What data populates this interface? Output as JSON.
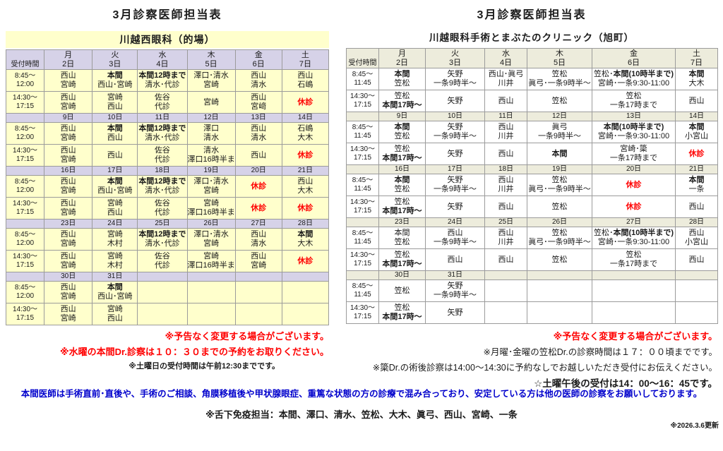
{
  "page_title": "3月診察医師担当表",
  "colors": {
    "holiday_red": "#FF0000",
    "notice_blue": "#0000CC",
    "left_header_bg": "#D6D2E8",
    "left_body_bg": "#FFFFCC",
    "right_header_bg": "#EDECDC"
  },
  "tables": {
    "left": {
      "clinic": "川越西眼科（的場）",
      "corner": "受付時間",
      "days": [
        "月",
        "火",
        "水",
        "木",
        "金",
        "土"
      ],
      "am_label": "8:45～\n12:00",
      "pm_label": "14:30～\n17:15",
      "weeks": [
        {
          "dates": [
            "2日",
            "3日",
            "4日",
            "5日",
            "6日",
            "7日"
          ],
          "am": [
            [
              "西山",
              "宮崎"
            ],
            [
              {
                "t": "本間",
                "b": 1
              },
              "西山･宮崎"
            ],
            [
              {
                "t": "本間12時まで",
                "b": 1
              },
              "清水･代診"
            ],
            [
              "澤口･清水",
              "宮崎"
            ],
            [
              "西山",
              "清水"
            ],
            [
              "西山",
              "石嶋"
            ]
          ],
          "pm": [
            [
              "西山",
              "宮崎"
            ],
            [
              "宮崎",
              "西山"
            ],
            [
              "佐谷",
              "代診"
            ],
            [
              "宮崎"
            ],
            [
              "西山",
              "宮﨑"
            ],
            [
              {
                "t": "休診",
                "r": 1
              }
            ]
          ]
        },
        {
          "dates": [
            "9日",
            "10日",
            "11日",
            "12日",
            "13日",
            "14日"
          ],
          "am": [
            [
              "西山",
              "宮崎"
            ],
            [
              {
                "t": "本間",
                "b": 1
              },
              "西山"
            ],
            [
              {
                "t": "本間12時まで",
                "b": 1
              },
              "清水･代診"
            ],
            [
              "澤口",
              "清水"
            ],
            [
              "西山",
              "清水"
            ],
            [
              "石嶋",
              "大木"
            ]
          ],
          "pm": [
            [
              "西山",
              "宮崎"
            ],
            [
              "西山"
            ],
            [
              "佐谷",
              "代診"
            ],
            [
              "清水",
              "澤口16時半まで"
            ],
            [
              "西山"
            ],
            [
              {
                "t": "休診",
                "r": 1
              }
            ]
          ]
        },
        {
          "dates": [
            "16日",
            "17日",
            "18日",
            "19日",
            "20日",
            "21日"
          ],
          "am": [
            [
              "西山",
              "宮崎"
            ],
            [
              {
                "t": "本間",
                "b": 1
              },
              "西山･宮崎"
            ],
            [
              {
                "t": "本間12時まで",
                "b": 1
              },
              "清水･代診"
            ],
            [
              "澤口･清水",
              "宮崎"
            ],
            [
              {
                "t": "休診",
                "r": 1
              }
            ],
            [
              "西山",
              "大木"
            ]
          ],
          "pm": [
            [
              "西山",
              "宮崎"
            ],
            [
              "宮崎",
              "西山"
            ],
            [
              "佐谷",
              "代診"
            ],
            [
              "宮崎",
              "澤口16時半まで"
            ],
            [
              {
                "t": "休診",
                "r": 1
              }
            ],
            [
              {
                "t": "休診",
                "r": 1
              }
            ]
          ]
        },
        {
          "dates": [
            "23日",
            "24日",
            "25日",
            "26日",
            "27日",
            "28日"
          ],
          "am": [
            [
              "西山",
              "宮崎"
            ],
            [
              "宮崎",
              "木村"
            ],
            [
              {
                "t": "本間12時まで",
                "b": 1
              },
              "清水･代診"
            ],
            [
              "澤口･清水",
              "宮崎"
            ],
            [
              "西山",
              "清水"
            ],
            [
              {
                "t": "本間",
                "b": 1
              },
              "大木"
            ]
          ],
          "pm": [
            [
              "西山",
              "宮崎"
            ],
            [
              "宮崎",
              "木村"
            ],
            [
              "佐谷",
              "代診"
            ],
            [
              "宮崎",
              "澤口16時半まで"
            ],
            [
              "西山",
              "宮崎"
            ],
            [
              {
                "t": "休診",
                "r": 1
              }
            ]
          ]
        },
        {
          "dates": [
            "30日",
            "31日",
            "",
            "",
            "",
            ""
          ],
          "am": [
            [
              "西山",
              "宮崎"
            ],
            [
              {
                "t": "本間",
                "b": 1
              },
              "西山･宮崎"
            ],
            [],
            [],
            [],
            []
          ],
          "pm": [
            [
              "西山",
              "宮崎"
            ],
            [
              "宮崎",
              "西山"
            ],
            [],
            [],
            [],
            []
          ]
        }
      ]
    },
    "right": {
      "clinic": "川越眼科手術とまぶたのクリニック（旭町）",
      "corner": "受付時間",
      "days": [
        "月",
        "火",
        "水",
        "木",
        "金",
        "土"
      ],
      "am_label": "8:45～\n11:45",
      "pm_label": "14:30～\n17:15",
      "weeks": [
        {
          "dates": [
            "2日",
            "3日",
            "4日",
            "5日",
            "6日",
            "7日"
          ],
          "am": [
            [
              {
                "t": "本間",
                "b": 1
              },
              "笠松"
            ],
            [
              "矢野",
              "一条9時半～"
            ],
            [
              "西山･眞弓",
              "川井"
            ],
            [
              "笠松",
              "眞弓･一条9時半～"
            ],
            [
              [
                "笠松･",
                {
                  "t": "本間(10時半まで)",
                  "b": 1
                }
              ],
              "宮崎･一条9:30-11:00"
            ],
            [
              {
                "t": "本間",
                "b": 1
              },
              "大木"
            ]
          ],
          "pm": [
            [
              "笠松",
              {
                "t": "本間17時～",
                "b": 1
              }
            ],
            [
              "矢野"
            ],
            [
              "西山"
            ],
            [
              "笠松"
            ],
            [
              "笠松",
              "一条17時まで"
            ],
            [
              "西山"
            ]
          ]
        },
        {
          "dates": [
            "9日",
            "10日",
            "11日",
            "12日",
            "13日",
            "14日"
          ],
          "am": [
            [
              {
                "t": "本間",
                "b": 1
              },
              "笠松"
            ],
            [
              "矢野",
              "一条9時半～"
            ],
            [
              "西山",
              "川井"
            ],
            [
              "眞弓",
              "一条9時半～"
            ],
            [
              {
                "t": "本間(10時半まで)",
                "b": 1
              },
              "宮崎･一条9:30-11:00"
            ],
            [
              {
                "t": "本間",
                "b": 1
              },
              "小宮山"
            ]
          ],
          "pm": [
            [
              "笠松",
              {
                "t": "本間17時～",
                "b": 1
              }
            ],
            [
              "矢野"
            ],
            [
              "西山"
            ],
            [
              {
                "t": "本間",
                "b": 1
              }
            ],
            [
              "宮崎･簗",
              "一条17時まで"
            ],
            [
              {
                "t": "休診",
                "r": 1
              }
            ]
          ]
        },
        {
          "dates": [
            "16日",
            "17日",
            "18日",
            "19日",
            "20日",
            "21日"
          ],
          "am": [
            [
              {
                "t": "本間",
                "b": 1
              },
              "笠松"
            ],
            [
              "矢野",
              "一条9時半～"
            ],
            [
              "西山",
              "川井"
            ],
            [
              "笠松",
              "眞弓･一条9時半～"
            ],
            [
              {
                "t": "休診",
                "r": 1
              }
            ],
            [
              {
                "t": "本間",
                "b": 1
              },
              "一条"
            ]
          ],
          "pm": [
            [
              "笠松",
              {
                "t": "本間17時～",
                "b": 1
              }
            ],
            [
              "矢野"
            ],
            [
              "西山"
            ],
            [
              "笠松"
            ],
            [
              {
                "t": "休診",
                "r": 1
              }
            ],
            [
              "西山"
            ]
          ]
        },
        {
          "dates": [
            "23日",
            "24日",
            "25日",
            "26日",
            "27日",
            "28日"
          ],
          "am": [
            [
              "本間",
              "笠松"
            ],
            [
              "西山",
              "一条9時半～"
            ],
            [
              "西山",
              "川井"
            ],
            [
              "笠松",
              "眞弓･一条9時半～"
            ],
            [
              [
                "笠松･",
                {
                  "t": "本間(10時半まで)",
                  "b": 1
                }
              ],
              "宮崎･一条9:30-11:00"
            ],
            [
              "西山",
              "小宮山"
            ]
          ],
          "pm": [
            [
              "笠松",
              {
                "t": "本間17時～",
                "b": 1
              }
            ],
            [
              "西山"
            ],
            [
              "西山"
            ],
            [
              "笠松"
            ],
            [
              "笠松",
              "一条17時まで"
            ],
            [
              "西山"
            ]
          ]
        },
        {
          "dates": [
            "30日",
            "31日",
            "",
            "",
            "",
            ""
          ],
          "am": [
            [
              "笠松"
            ],
            [
              "矢野",
              "一条9時半～"
            ],
            [],
            [],
            [],
            []
          ],
          "pm": [
            [
              "笠松",
              {
                "t": "本間17時～",
                "b": 1
              }
            ],
            [
              "矢野"
            ],
            [],
            [],
            [],
            []
          ]
        }
      ]
    }
  },
  "notes": {
    "left": [
      "※予告なく変更する場合がございます。",
      "※水曜の本間Dr.診察は１０：３０までの予約をお取りください。",
      "※土曜日の受付時間は午前12:30までです。"
    ],
    "right": [
      "※予告なく変更する場合がございます。",
      "※月曜･金曜の笠松Dr.の診察時間は１７：００頃までです。",
      "※簗Dr.の術後診察は14:00～14:30に予約なしでお越しいただき受付にお伝えください。",
      "☆土曜午後の受付は14：00～16：45です。"
    ]
  },
  "footer": {
    "honma_notice": "本間医師は手術直前･直後や、手術のご相談、角膜移植後や甲状腺眼症、重篤な状態の方の診療で混み合っており、安定している方は他の医師の診察をお願いしております。",
    "sublingual": "※舌下免疫担当：本間、澤口、清水、笠松、大木、眞弓、西山、宮崎、一条",
    "updated": "※2026.3.6更新"
  }
}
